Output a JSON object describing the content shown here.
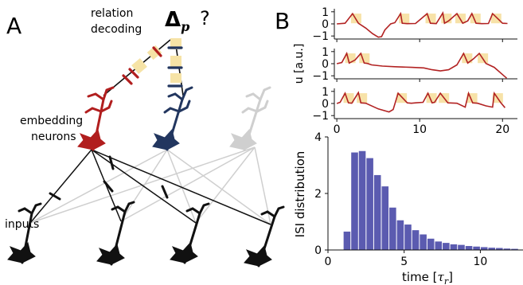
{
  "panel_a": {
    "label": "A",
    "relation_line1": "relation",
    "relation_line2": "decoding",
    "delta": "Δ",
    "delta_sub": "p",
    "question": "?",
    "embedding_line1": "embedding",
    "embedding_line2": "neurons",
    "inputs_label": "inputs",
    "colors": {
      "red": "#b11e1e",
      "navy": "#22365f",
      "grey": "#cfcfcf",
      "black": "#111111",
      "band": "#f6e3a6"
    }
  },
  "panel_b": {
    "label": "B",
    "trace_ylabel": "u [a.u.]",
    "hist_ylabel": "ISI distribution",
    "hist_xlabel": "time [τ_r]",
    "trace_color": "#b22222",
    "spike_box_color": "#f7e2a8",
    "bar_color": "#5b5bb0"
  },
  "chart_data": [
    {
      "type": "line",
      "title": "",
      "ylabel": "u [a.u.]",
      "xlim": [
        -0.3,
        21.8
      ],
      "ylim": [
        -1.25,
        1.25
      ],
      "xticks": [
        "0",
        "10",
        "20"
      ],
      "yticks": [
        "1",
        "0",
        "-1"
      ],
      "series": [
        {
          "x": [
            0,
            1,
            1.9,
            2.6,
            3.5,
            4.3,
            5.0,
            5.4,
            5.8,
            6.5,
            7.0,
            7.7,
            7.9,
            8.5,
            9.5,
            10.9,
            11.3,
            12.0,
            12.8,
            13.0,
            13.5,
            14.5,
            15.2,
            15.8,
            16.3,
            16.8,
            17.5,
            18.3,
            18.8,
            20.0,
            20.6
          ],
          "y": [
            0,
            0.05,
            0.85,
            0.05,
            -0.35,
            -0.8,
            -1.1,
            -1.05,
            -0.5,
            0,
            0.1,
            0.85,
            0.05,
            0.02,
            0.03,
            0.85,
            0.05,
            0.02,
            0.9,
            0.05,
            0.25,
            0.85,
            0.05,
            0.25,
            0.85,
            0.05,
            0.02,
            0.03,
            0.85,
            0.05,
            0.03
          ]
        },
        {
          "x": [
            0,
            0.6,
            1.2,
            1.5,
            2.2,
            2.9,
            3.3,
            3.7,
            4.2,
            5.5,
            7.0,
            9.0,
            10.5,
            11.5,
            12.5,
            13.5,
            14.5,
            15.3,
            15.8,
            16.5,
            17.2,
            18.0,
            19.0,
            20.0,
            20.5
          ],
          "y": [
            0,
            0.1,
            0.85,
            0.05,
            0.3,
            0.85,
            0.05,
            0.02,
            -0.1,
            -0.2,
            -0.25,
            -0.3,
            -0.35,
            -0.5,
            -0.6,
            -0.5,
            -0.1,
            0.85,
            0.05,
            0.4,
            0.85,
            0.02,
            -0.3,
            -0.9,
            -1.2
          ]
        },
        {
          "x": [
            0,
            0.4,
            1.0,
            1.4,
            1.8,
            2.6,
            2.9,
            3.5,
            5.0,
            6.3,
            6.8,
            7.4,
            8.5,
            9.0,
            9.5,
            10.4,
            11.0,
            11.5,
            11.8,
            12.5,
            13.4,
            14.5,
            15.5,
            15.9,
            16.4,
            17.0,
            18.0,
            18.8,
            19.0,
            19.8,
            20.3
          ],
          "y": [
            0,
            0.1,
            0.85,
            0.05,
            0.02,
            0.9,
            0.05,
            0.02,
            -0.45,
            -0.7,
            -0.5,
            0.85,
            0.05,
            0.02,
            0.05,
            0.1,
            0.85,
            0.05,
            0.1,
            0.85,
            0.05,
            0.02,
            -0.3,
            0.85,
            0.05,
            0.02,
            -0.2,
            -0.3,
            0.85,
            0.05,
            -0.35
          ]
        }
      ],
      "spike_times": [
        [
          1.9,
          7.7,
          10.9,
          12.8,
          14.5,
          16.3,
          18.8
        ],
        [
          1.2,
          2.9,
          15.3,
          17.2
        ],
        [
          1.0,
          2.6,
          7.4,
          11.0,
          12.5,
          15.9,
          19.0
        ]
      ]
    },
    {
      "type": "bar",
      "title": "",
      "xlabel": "time [τ_r]",
      "ylabel": "ISI distribution",
      "xlim": [
        0,
        12.8
      ],
      "ylim": [
        0,
        4
      ],
      "xticks": [
        "0",
        "5",
        "10"
      ],
      "yticks": [
        "0",
        "2",
        "4"
      ],
      "bin_width": 0.5,
      "x": [
        1.25,
        1.75,
        2.25,
        2.75,
        3.25,
        3.75,
        4.25,
        4.75,
        5.25,
        5.75,
        6.25,
        6.75,
        7.25,
        7.75,
        8.25,
        8.75,
        9.25,
        9.75,
        10.25,
        10.75,
        11.25,
        11.75,
        12.25
      ],
      "values": [
        0.65,
        3.45,
        3.5,
        3.25,
        2.65,
        2.25,
        1.5,
        1.05,
        0.9,
        0.7,
        0.55,
        0.4,
        0.3,
        0.25,
        0.2,
        0.18,
        0.14,
        0.12,
        0.1,
        0.08,
        0.07,
        0.05,
        0.04
      ]
    }
  ]
}
